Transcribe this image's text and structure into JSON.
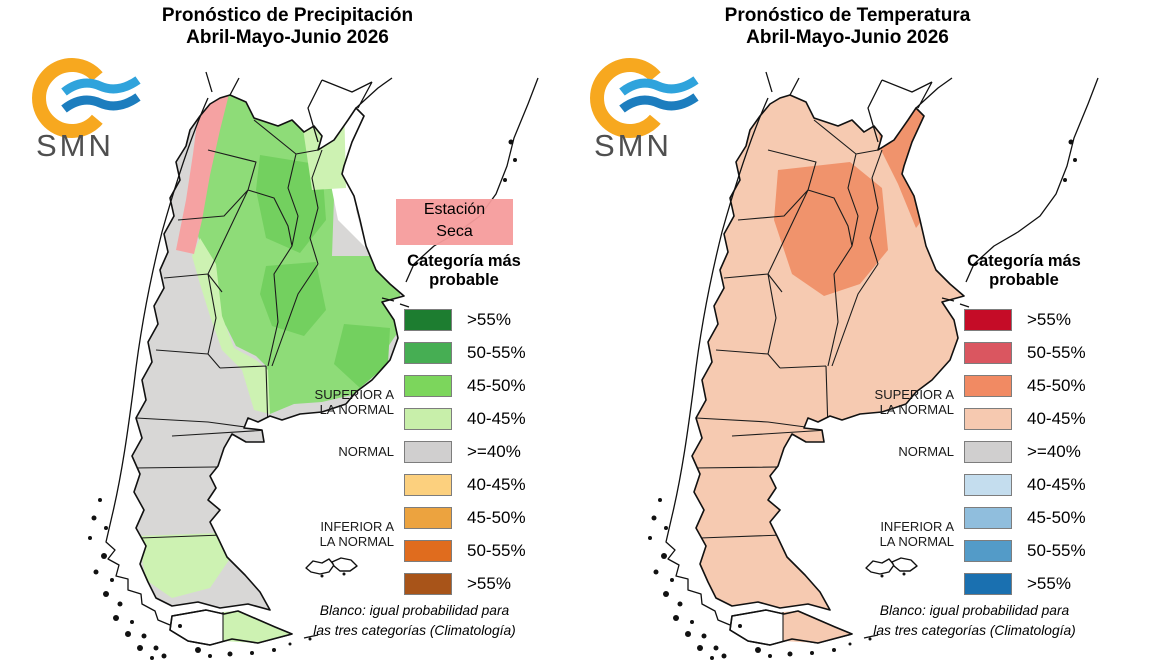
{
  "left": {
    "title1": "Pronóstico de Precipitación",
    "title2": "Abril-Mayo-Junio 2026",
    "logo": "SMN",
    "estacion1": "Estación",
    "estacion2": "Seca",
    "heading1": "Categoría más",
    "heading2": "probable",
    "label_sup1": "SUPERIOR A",
    "label_sup2": "LA NORMAL",
    "label_nor": "NORMAL",
    "label_inf1": "INFERIOR A",
    "label_inf2": "LA NORMAL",
    "rows": [
      {
        "label": ">55%",
        "color": "#1d7d30"
      },
      {
        "label": "50-55%",
        "color": "#46ae53"
      },
      {
        "label": "45-50%",
        "color": "#7cd65c"
      },
      {
        "label": "40-45%",
        "color": "#c8efaa"
      },
      {
        "label": ">=40%",
        "color": "#d0cfcf"
      },
      {
        "label": "40-45%",
        "color": "#fcd07e"
      },
      {
        "label": "45-50%",
        "color": "#eca33f"
      },
      {
        "label": "50-55%",
        "color": "#e06c1e"
      },
      {
        "label": ">55%",
        "color": "#a85419"
      }
    ],
    "foot1": "Blanco: igual probabilidad para",
    "foot2": "las tres categorías (Climatología)",
    "map_fills": {
      "base": "#d8d7d6",
      "green_main": "#8edc78",
      "dark": "#73d05f",
      "white_ne": "#ffffff",
      "pale": "#cdf2b2",
      "south_strip": "#cdf2b2",
      "pink_band": "#f5a2a2",
      "center_dark": "none",
      "ne_band": "none",
      "tdf": "#cdf2b2"
    }
  },
  "right": {
    "title1": "Pronóstico de Temperatura",
    "title2": "Abril-Mayo-Junio 2026",
    "logo": "SMN",
    "heading1": "Categoría más",
    "heading2": "probable",
    "label_sup1": "SUPERIOR A",
    "label_sup2": "LA NORMAL",
    "label_nor": "NORMAL",
    "label_inf1": "INFERIOR A",
    "label_inf2": "LA NORMAL",
    "rows": [
      {
        "label": ">55%",
        "color": "#c50c27"
      },
      {
        "label": "50-55%",
        "color": "#da5660"
      },
      {
        "label": "45-50%",
        "color": "#f18a63"
      },
      {
        "label": "40-45%",
        "color": "#f6c9b0"
      },
      {
        "label": ">=40%",
        "color": "#d0cfcf"
      },
      {
        "label": "40-45%",
        "color": "#c4ddee"
      },
      {
        "label": "45-50%",
        "color": "#90bedd"
      },
      {
        "label": "50-55%",
        "color": "#539bc8"
      },
      {
        "label": ">55%",
        "color": "#1a70b0"
      }
    ],
    "foot1": "Blanco: igual probabilidad para",
    "foot2": "las tres categorías (Climatología)",
    "map_fills": {
      "base": "#f6cab1",
      "green_main": "none",
      "dark": "none",
      "white_ne": "none",
      "pale": "none",
      "south_strip": "none",
      "pink_band": "none",
      "center_dark": "#f0936c",
      "ne_band": "#f0936c",
      "tdf": "#f6cab1"
    }
  },
  "logo_colors": {
    "ring": "#F7A81F",
    "wave_top": "#2FA3DC",
    "wave_bottom": "#1C7DBE",
    "text": "#4f4f4f"
  }
}
